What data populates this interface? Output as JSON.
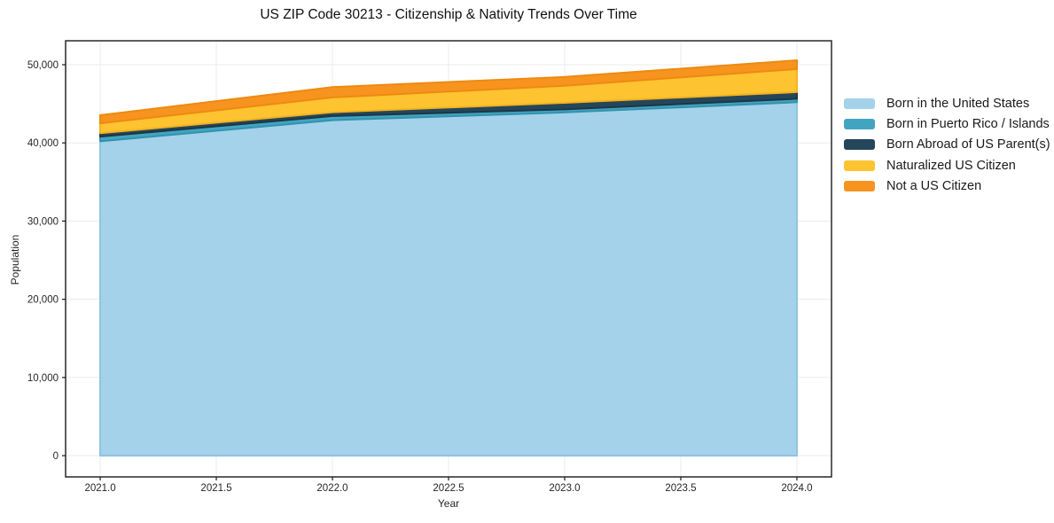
{
  "chart_data": {
    "type": "area",
    "stacked": true,
    "title": "US ZIP Code 30213 - Citizenship & Nativity Trends Over Time",
    "xlabel": "Year",
    "ylabel": "Population",
    "x": [
      2021,
      2022,
      2023,
      2024
    ],
    "series": [
      {
        "name": "Born in the United States",
        "color": "#a4d2ea",
        "edge": "#8fc4e0",
        "values": [
          40200,
          42900,
          43900,
          45200
        ]
      },
      {
        "name": "Born in Puerto Rico / Islands",
        "color": "#41a5c1",
        "edge": "#3492ad",
        "values": [
          600,
          530,
          390,
          450
        ]
      },
      {
        "name": "Born Abroad of US Parent(s)",
        "color": "#25465a",
        "edge": "#1c3747",
        "values": [
          450,
          490,
          830,
          840
        ]
      },
      {
        "name": "Naturalized US Citizen",
        "color": "#fdc330",
        "edge": "#f4b31f",
        "values": [
          1250,
          1890,
          2190,
          2950
        ]
      },
      {
        "name": "Not a US Citizen",
        "color": "#f79420",
        "edge": "#ee8a10",
        "values": [
          1050,
          1330,
          1130,
          1130
        ]
      }
    ],
    "x_ticks": {
      "values": [
        2021.0,
        2021.5,
        2022.0,
        2022.5,
        2023.0,
        2023.5,
        2024.0
      ],
      "labels": [
        "2021.0",
        "2021.5",
        "2022.0",
        "2022.5",
        "2023.0",
        "2023.5",
        "2024.0"
      ]
    },
    "y_ticks": {
      "values": [
        0,
        10000,
        20000,
        30000,
        40000,
        50000
      ],
      "labels": [
        "0",
        "10,000",
        "20,000",
        "30,000",
        "40,000",
        "50,000"
      ]
    },
    "xlim": [
      2020.851,
      2024.149
    ],
    "ylim": [
      -2720,
      53060
    ],
    "grid": true,
    "legend_position": "right",
    "colors": {
      "grid": "#ebebeb",
      "spine": "#1a1a1a",
      "tick_text": "#262626",
      "background": "#ffffff"
    }
  }
}
